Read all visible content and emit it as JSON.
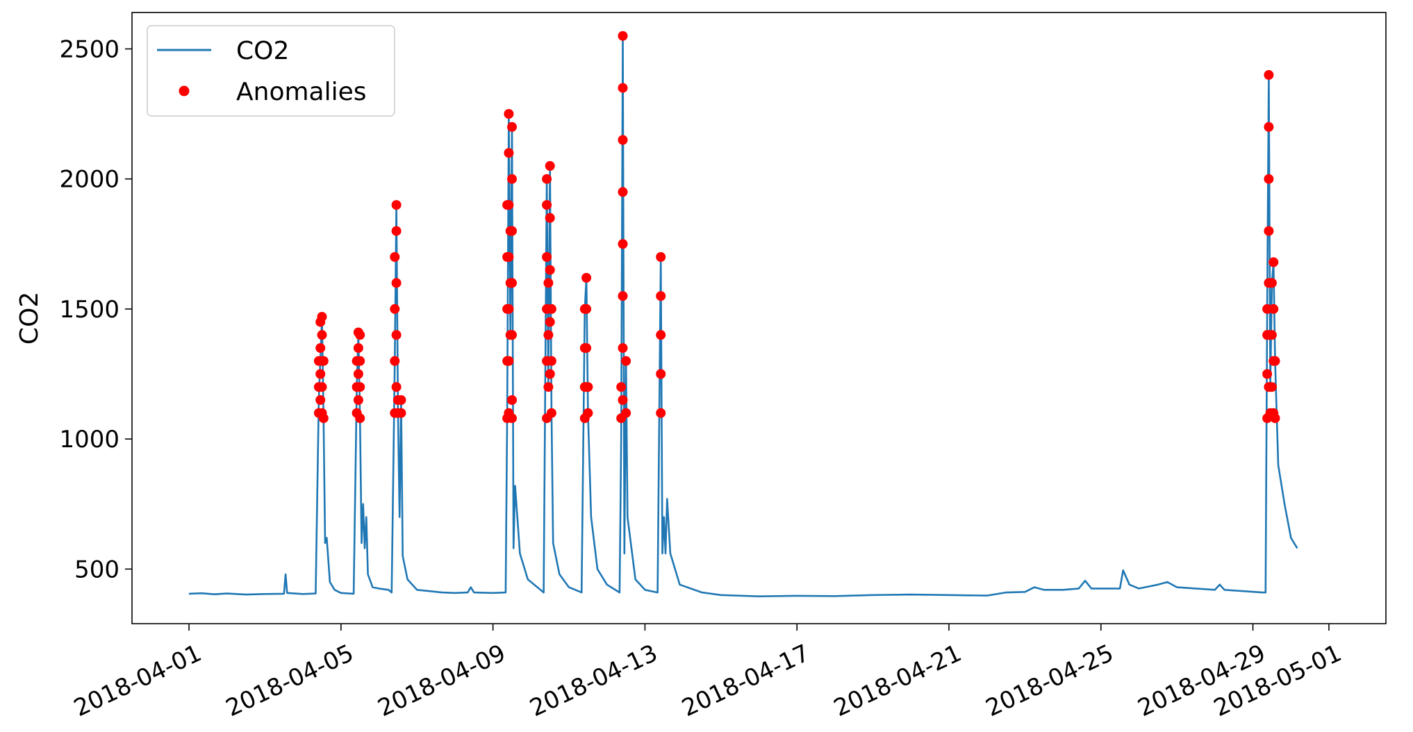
{
  "chart_data": {
    "type": "line",
    "title": "",
    "xlabel": "",
    "ylabel": "CO2",
    "x_ticks": [
      "2018-04-01",
      "2018-04-05",
      "2018-04-09",
      "2018-04-13",
      "2018-04-17",
      "2018-04-21",
      "2018-04-25",
      "2018-04-29",
      "2018-05-01"
    ],
    "y_ticks": [
      500,
      1000,
      1500,
      2000,
      2500
    ],
    "xlim": [
      "2018-03-30T12:00",
      "2018-05-02T12:00"
    ],
    "ylim": [
      290,
      2640
    ],
    "grid": false,
    "legend": "top-left",
    "legend_entries": [
      {
        "label": "CO2",
        "kind": "line",
        "color": "#1f77b4"
      },
      {
        "label": "Anomalies",
        "kind": "marker",
        "color": "#ff0000"
      }
    ],
    "series": [
      {
        "name": "CO2",
        "color": "#1f77b4",
        "points": [
          [
            "2018-04-01T00:00",
            405
          ],
          [
            "2018-04-01T08:00",
            407
          ],
          [
            "2018-04-01T16:00",
            403
          ],
          [
            "2018-04-02T00:00",
            406
          ],
          [
            "2018-04-02T12:00",
            402
          ],
          [
            "2018-04-03T00:00",
            404
          ],
          [
            "2018-04-03T12:00",
            405
          ],
          [
            "2018-04-03T13:00",
            480
          ],
          [
            "2018-04-03T14:00",
            408
          ],
          [
            "2018-04-04T00:00",
            404
          ],
          [
            "2018-04-04T08:00",
            406
          ],
          [
            "2018-04-04T10:00",
            1150
          ],
          [
            "2018-04-04T12:00",
            1470
          ],
          [
            "2018-04-04T13:00",
            1070
          ],
          [
            "2018-04-04T14:00",
            600
          ],
          [
            "2018-04-04T15:00",
            620
          ],
          [
            "2018-04-04T17:00",
            450
          ],
          [
            "2018-04-04T20:00",
            420
          ],
          [
            "2018-04-05T00:00",
            408
          ],
          [
            "2018-04-05T08:00",
            405
          ],
          [
            "2018-04-05T10:00",
            1200
          ],
          [
            "2018-04-05T11:00",
            1410
          ],
          [
            "2018-04-05T12:00",
            1080
          ],
          [
            "2018-04-05T13:00",
            600
          ],
          [
            "2018-04-05T14:00",
            750
          ],
          [
            "2018-04-05T15:00",
            580
          ],
          [
            "2018-04-05T16:00",
            700
          ],
          [
            "2018-04-05T17:00",
            480
          ],
          [
            "2018-04-05T20:00",
            430
          ],
          [
            "2018-04-06T00:00",
            425
          ],
          [
            "2018-04-06T06:00",
            420
          ],
          [
            "2018-04-06T08:00",
            410
          ],
          [
            "2018-04-06T10:00",
            1300
          ],
          [
            "2018-04-06T11:00",
            1900
          ],
          [
            "2018-04-06T12:00",
            1100
          ],
          [
            "2018-04-06T13:00",
            700
          ],
          [
            "2018-04-06T14:00",
            1150
          ],
          [
            "2018-04-06T15:00",
            550
          ],
          [
            "2018-04-06T18:00",
            460
          ],
          [
            "2018-04-07T00:00",
            420
          ],
          [
            "2018-04-07T08:00",
            415
          ],
          [
            "2018-04-07T16:00",
            410
          ],
          [
            "2018-04-08T00:00",
            408
          ],
          [
            "2018-04-08T08:00",
            410
          ],
          [
            "2018-04-08T10:00",
            430
          ],
          [
            "2018-04-08T12:00",
            410
          ],
          [
            "2018-04-09T00:00",
            408
          ],
          [
            "2018-04-09T08:00",
            410
          ],
          [
            "2018-04-09T09:00",
            1100
          ],
          [
            "2018-04-09T10:00",
            2250
          ],
          [
            "2018-04-09T11:00",
            1400
          ],
          [
            "2018-04-09T12:00",
            2200
          ],
          [
            "2018-04-09T13:00",
            580
          ],
          [
            "2018-04-09T14:00",
            820
          ],
          [
            "2018-04-09T17:00",
            560
          ],
          [
            "2018-04-09T22:00",
            460
          ],
          [
            "2018-04-10T06:00",
            420
          ],
          [
            "2018-04-10T08:00",
            410
          ],
          [
            "2018-04-10T10:00",
            2000
          ],
          [
            "2018-04-10T11:00",
            1200
          ],
          [
            "2018-04-10T12:00",
            2050
          ],
          [
            "2018-04-10T13:00",
            1100
          ],
          [
            "2018-04-10T14:00",
            600
          ],
          [
            "2018-04-10T18:00",
            480
          ],
          [
            "2018-04-11T00:00",
            430
          ],
          [
            "2018-04-11T08:00",
            410
          ],
          [
            "2018-04-11T10:00",
            1500
          ],
          [
            "2018-04-11T11:00",
            1620
          ],
          [
            "2018-04-11T12:00",
            1100
          ],
          [
            "2018-04-11T14:00",
            700
          ],
          [
            "2018-04-11T18:00",
            500
          ],
          [
            "2018-04-12T00:00",
            440
          ],
          [
            "2018-04-12T08:00",
            410
          ],
          [
            "2018-04-12T09:00",
            1000
          ],
          [
            "2018-04-12T10:00",
            2550
          ],
          [
            "2018-04-12T11:00",
            560
          ],
          [
            "2018-04-12T12:00",
            1300
          ],
          [
            "2018-04-12T13:00",
            700
          ],
          [
            "2018-04-12T18:00",
            460
          ],
          [
            "2018-04-13T00:00",
            420
          ],
          [
            "2018-04-13T08:00",
            410
          ],
          [
            "2018-04-13T10:00",
            1700
          ],
          [
            "2018-04-13T11:00",
            560
          ],
          [
            "2018-04-13T12:00",
            700
          ],
          [
            "2018-04-13T13:00",
            560
          ],
          [
            "2018-04-13T14:00",
            770
          ],
          [
            "2018-04-13T16:00",
            560
          ],
          [
            "2018-04-13T22:00",
            440
          ],
          [
            "2018-04-14T12:00",
            410
          ],
          [
            "2018-04-15T00:00",
            400
          ],
          [
            "2018-04-16T00:00",
            395
          ],
          [
            "2018-04-17T00:00",
            397
          ],
          [
            "2018-04-18T00:00",
            396
          ],
          [
            "2018-04-19T00:00",
            400
          ],
          [
            "2018-04-20T00:00",
            402
          ],
          [
            "2018-04-21T00:00",
            400
          ],
          [
            "2018-04-22T00:00",
            398
          ],
          [
            "2018-04-22T12:00",
            410
          ],
          [
            "2018-04-23T00:00",
            412
          ],
          [
            "2018-04-23T06:00",
            430
          ],
          [
            "2018-04-23T12:00",
            420
          ],
          [
            "2018-04-24T00:00",
            420
          ],
          [
            "2018-04-24T10:00",
            425
          ],
          [
            "2018-04-24T14:00",
            455
          ],
          [
            "2018-04-24T18:00",
            425
          ],
          [
            "2018-04-25T00:00",
            425
          ],
          [
            "2018-04-25T12:00",
            425
          ],
          [
            "2018-04-25T14:00",
            495
          ],
          [
            "2018-04-25T18:00",
            440
          ],
          [
            "2018-04-26T00:00",
            425
          ],
          [
            "2018-04-26T12:00",
            440
          ],
          [
            "2018-04-26T18:00",
            450
          ],
          [
            "2018-04-27T00:00",
            430
          ],
          [
            "2018-04-27T12:00",
            425
          ],
          [
            "2018-04-28T00:00",
            420
          ],
          [
            "2018-04-28T03:00",
            440
          ],
          [
            "2018-04-28T06:00",
            420
          ],
          [
            "2018-04-28T18:00",
            415
          ],
          [
            "2018-04-29T06:00",
            410
          ],
          [
            "2018-04-29T08:00",
            410
          ],
          [
            "2018-04-29T09:00",
            1500
          ],
          [
            "2018-04-29T10:00",
            2400
          ],
          [
            "2018-04-29T11:00",
            1200
          ],
          [
            "2018-04-29T12:00",
            1600
          ],
          [
            "2018-04-29T13:00",
            1680
          ],
          [
            "2018-04-29T14:00",
            1300
          ],
          [
            "2018-04-29T16:00",
            900
          ],
          [
            "2018-04-29T20:00",
            750
          ],
          [
            "2018-04-30T00:00",
            620
          ],
          [
            "2018-04-30T04:00",
            580
          ]
        ]
      },
      {
        "name": "Anomalies",
        "color": "#ff0000",
        "marker": "dot",
        "points": [
          [
            "2018-04-04T10:00",
            1100
          ],
          [
            "2018-04-04T10:00",
            1200
          ],
          [
            "2018-04-04T10:00",
            1300
          ],
          [
            "2018-04-04T11:00",
            1150
          ],
          [
            "2018-04-04T11:00",
            1250
          ],
          [
            "2018-04-04T11:00",
            1350
          ],
          [
            "2018-04-04T11:00",
            1450
          ],
          [
            "2018-04-04T12:00",
            1470
          ],
          [
            "2018-04-04T12:00",
            1400
          ],
          [
            "2018-04-04T12:00",
            1300
          ],
          [
            "2018-04-04T12:00",
            1200
          ],
          [
            "2018-04-04T12:00",
            1100
          ],
          [
            "2018-04-04T13:00",
            1080
          ],
          [
            "2018-04-04T13:00",
            1300
          ],
          [
            "2018-04-05T10:00",
            1100
          ],
          [
            "2018-04-05T10:00",
            1200
          ],
          [
            "2018-04-05T10:00",
            1300
          ],
          [
            "2018-04-05T11:00",
            1410
          ],
          [
            "2018-04-05T11:00",
            1350
          ],
          [
            "2018-04-05T11:00",
            1250
          ],
          [
            "2018-04-05T11:00",
            1150
          ],
          [
            "2018-04-05T12:00",
            1080
          ],
          [
            "2018-04-05T12:00",
            1200
          ],
          [
            "2018-04-05T12:00",
            1300
          ],
          [
            "2018-04-05T12:00",
            1400
          ],
          [
            "2018-04-06T10:00",
            1100
          ],
          [
            "2018-04-06T10:00",
            1300
          ],
          [
            "2018-04-06T10:00",
            1500
          ],
          [
            "2018-04-06T10:00",
            1700
          ],
          [
            "2018-04-06T11:00",
            1900
          ],
          [
            "2018-04-06T11:00",
            1800
          ],
          [
            "2018-04-06T11:00",
            1600
          ],
          [
            "2018-04-06T11:00",
            1400
          ],
          [
            "2018-04-06T11:00",
            1200
          ],
          [
            "2018-04-06T12:00",
            1100
          ],
          [
            "2018-04-06T12:00",
            1150
          ],
          [
            "2018-04-06T14:00",
            1150
          ],
          [
            "2018-04-06T14:00",
            1100
          ],
          [
            "2018-04-09T09:00",
            1080
          ],
          [
            "2018-04-09T09:00",
            1300
          ],
          [
            "2018-04-09T09:00",
            1500
          ],
          [
            "2018-04-09T09:00",
            1700
          ],
          [
            "2018-04-09T09:00",
            1900
          ],
          [
            "2018-04-09T10:00",
            2250
          ],
          [
            "2018-04-09T10:00",
            2100
          ],
          [
            "2018-04-09T10:00",
            1900
          ],
          [
            "2018-04-09T10:00",
            1700
          ],
          [
            "2018-04-09T10:00",
            1500
          ],
          [
            "2018-04-09T10:00",
            1300
          ],
          [
            "2018-04-09T10:00",
            1100
          ],
          [
            "2018-04-09T11:00",
            1400
          ],
          [
            "2018-04-09T11:00",
            1600
          ],
          [
            "2018-04-09T11:00",
            1800
          ],
          [
            "2018-04-09T12:00",
            2200
          ],
          [
            "2018-04-09T12:00",
            2000
          ],
          [
            "2018-04-09T12:00",
            1800
          ],
          [
            "2018-04-09T12:00",
            1600
          ],
          [
            "2018-04-09T12:00",
            1400
          ],
          [
            "2018-04-09T12:00",
            1150
          ],
          [
            "2018-04-09T12:00",
            1080
          ],
          [
            "2018-04-10T10:00",
            1080
          ],
          [
            "2018-04-10T10:00",
            1300
          ],
          [
            "2018-04-10T10:00",
            1500
          ],
          [
            "2018-04-10T10:00",
            1700
          ],
          [
            "2018-04-10T10:00",
            1900
          ],
          [
            "2018-04-10T10:00",
            2000
          ],
          [
            "2018-04-10T11:00",
            1200
          ],
          [
            "2018-04-10T11:00",
            1400
          ],
          [
            "2018-04-10T11:00",
            1600
          ],
          [
            "2018-04-10T12:00",
            2050
          ],
          [
            "2018-04-10T12:00",
            1850
          ],
          [
            "2018-04-10T12:00",
            1650
          ],
          [
            "2018-04-10T12:00",
            1450
          ],
          [
            "2018-04-10T12:00",
            1250
          ],
          [
            "2018-04-10T13:00",
            1100
          ],
          [
            "2018-04-10T13:00",
            1300
          ],
          [
            "2018-04-10T13:00",
            1500
          ],
          [
            "2018-04-11T10:00",
            1080
          ],
          [
            "2018-04-11T10:00",
            1200
          ],
          [
            "2018-04-11T10:00",
            1350
          ],
          [
            "2018-04-11T10:00",
            1500
          ],
          [
            "2018-04-11T11:00",
            1620
          ],
          [
            "2018-04-11T11:00",
            1500
          ],
          [
            "2018-04-11T11:00",
            1350
          ],
          [
            "2018-04-11T11:00",
            1200
          ],
          [
            "2018-04-11T12:00",
            1100
          ],
          [
            "2018-04-11T12:00",
            1200
          ],
          [
            "2018-04-12T09:00",
            1080
          ],
          [
            "2018-04-12T09:00",
            1200
          ],
          [
            "2018-04-12T10:00",
            2550
          ],
          [
            "2018-04-12T10:00",
            2350
          ],
          [
            "2018-04-12T10:00",
            2150
          ],
          [
            "2018-04-12T10:00",
            1950
          ],
          [
            "2018-04-12T10:00",
            1750
          ],
          [
            "2018-04-12T10:00",
            1550
          ],
          [
            "2018-04-12T10:00",
            1350
          ],
          [
            "2018-04-12T10:00",
            1150
          ],
          [
            "2018-04-12T12:00",
            1300
          ],
          [
            "2018-04-12T12:00",
            1100
          ],
          [
            "2018-04-13T10:00",
            1700
          ],
          [
            "2018-04-13T10:00",
            1550
          ],
          [
            "2018-04-13T10:00",
            1400
          ],
          [
            "2018-04-13T10:00",
            1250
          ],
          [
            "2018-04-13T10:00",
            1100
          ],
          [
            "2018-04-29T09:00",
            1080
          ],
          [
            "2018-04-29T09:00",
            1250
          ],
          [
            "2018-04-29T09:00",
            1400
          ],
          [
            "2018-04-29T09:00",
            1500
          ],
          [
            "2018-04-29T10:00",
            2400
          ],
          [
            "2018-04-29T10:00",
            2200
          ],
          [
            "2018-04-29T10:00",
            2000
          ],
          [
            "2018-04-29T10:00",
            1800
          ],
          [
            "2018-04-29T10:00",
            1600
          ],
          [
            "2018-04-29T10:00",
            1400
          ],
          [
            "2018-04-29T10:00",
            1200
          ],
          [
            "2018-04-29T11:00",
            1200
          ],
          [
            "2018-04-29T11:00",
            1100
          ],
          [
            "2018-04-29T12:00",
            1600
          ],
          [
            "2018-04-29T12:00",
            1400
          ],
          [
            "2018-04-29T12:00",
            1200
          ],
          [
            "2018-04-29T13:00",
            1680
          ],
          [
            "2018-04-29T13:00",
            1500
          ],
          [
            "2018-04-29T13:00",
            1300
          ],
          [
            "2018-04-29T13:00",
            1100
          ],
          [
            "2018-04-29T14:00",
            1300
          ],
          [
            "2018-04-29T14:00",
            1080
          ]
        ]
      }
    ]
  }
}
